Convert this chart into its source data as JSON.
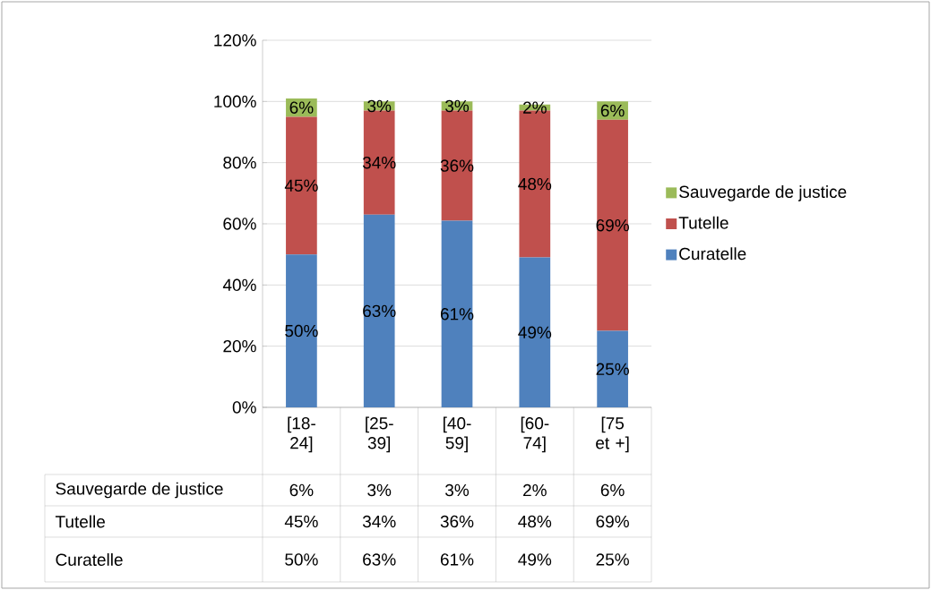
{
  "chart_data": {
    "type": "bar",
    "stacked": true,
    "categories": [
      "[18-24]",
      "[25-39]",
      "[40-59]",
      "[60-74]",
      "[75 et +]"
    ],
    "series": [
      {
        "name": "Curatelle",
        "color": "#4f81bd",
        "values": [
          50,
          63,
          61,
          49,
          25
        ],
        "value_labels": [
          "50%",
          "63%",
          "61%",
          "49%",
          "25%"
        ]
      },
      {
        "name": "Tutelle",
        "color": "#c0504d",
        "values": [
          45,
          34,
          36,
          48,
          69
        ],
        "value_labels": [
          "45%",
          "34%",
          "36%",
          "48%",
          "69%"
        ]
      },
      {
        "name": "Sauvegarde de justice",
        "color": "#9bbb59",
        "values": [
          6,
          3,
          3,
          2,
          6
        ],
        "value_labels": [
          "6%",
          "3%",
          "3%",
          "2%",
          "6%"
        ]
      }
    ],
    "ylim": [
      0,
      120
    ],
    "yticks": [
      {
        "value": 0,
        "label": "0%"
      },
      {
        "value": 20,
        "label": "20%"
      },
      {
        "value": 40,
        "label": "40%"
      },
      {
        "value": 60,
        "label": "60%"
      },
      {
        "value": 80,
        "label": "80%"
      },
      {
        "value": 100,
        "label": "100%"
      },
      {
        "value": 120,
        "label": "120%"
      }
    ],
    "grid": "y",
    "legend": "right"
  }
}
